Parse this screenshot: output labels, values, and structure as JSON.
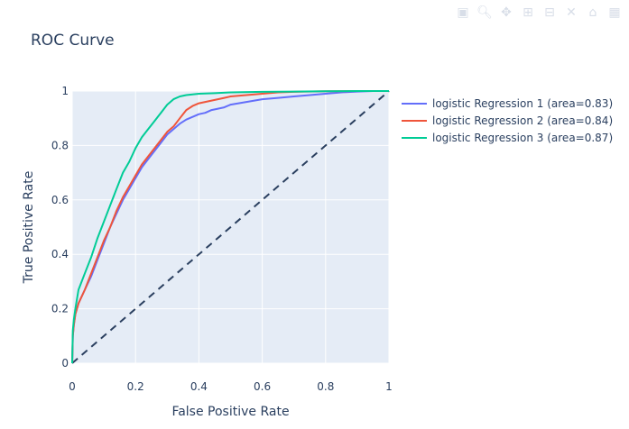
{
  "modebar": {
    "icons": [
      "camera-icon",
      "zoom-icon",
      "pan-icon",
      "zoom-in-icon",
      "zoom-out-icon",
      "autoscale-icon",
      "reset-axes-icon",
      "plotly-logo-icon"
    ]
  },
  "chart_data": {
    "type": "line",
    "title": "ROC Curve",
    "xlabel": "False Positive Rate",
    "ylabel": "True Positive Rate",
    "xlim": [
      0,
      1
    ],
    "ylim": [
      0,
      1
    ],
    "x_ticks": [
      "0",
      "0.2",
      "0.4",
      "0.6",
      "0.8",
      "1"
    ],
    "y_ticks": [
      "0",
      "0.2",
      "0.4",
      "0.6",
      "0.8",
      "1"
    ],
    "grid": true,
    "legend_position": "right",
    "plot_bgcolor": "#e5ecf6",
    "series": [
      {
        "name": "logistic Regression 1 (area=0.83)",
        "color": "#636efa",
        "x": [
          0,
          0.002,
          0.005,
          0.01,
          0.02,
          0.04,
          0.06,
          0.08,
          0.1,
          0.12,
          0.14,
          0.16,
          0.18,
          0.2,
          0.22,
          0.24,
          0.26,
          0.28,
          0.3,
          0.32,
          0.34,
          0.36,
          0.38,
          0.4,
          0.42,
          0.44,
          0.46,
          0.48,
          0.5,
          0.55,
          0.6,
          0.65,
          0.7,
          0.75,
          0.8,
          0.85,
          0.9,
          0.95,
          1.0
        ],
        "y": [
          0,
          0.1,
          0.14,
          0.18,
          0.22,
          0.27,
          0.32,
          0.38,
          0.44,
          0.5,
          0.55,
          0.6,
          0.64,
          0.68,
          0.72,
          0.75,
          0.78,
          0.81,
          0.84,
          0.86,
          0.88,
          0.895,
          0.905,
          0.915,
          0.92,
          0.93,
          0.935,
          0.94,
          0.95,
          0.96,
          0.97,
          0.975,
          0.98,
          0.985,
          0.99,
          0.995,
          0.998,
          1.0,
          1.0
        ]
      },
      {
        "name": "logistic Regression 2 (area=0.84)",
        "color": "#ef553b",
        "x": [
          0,
          0.002,
          0.005,
          0.01,
          0.02,
          0.04,
          0.06,
          0.08,
          0.1,
          0.12,
          0.14,
          0.16,
          0.18,
          0.2,
          0.22,
          0.24,
          0.26,
          0.28,
          0.3,
          0.32,
          0.34,
          0.36,
          0.38,
          0.4,
          0.42,
          0.44,
          0.46,
          0.48,
          0.5,
          0.55,
          0.6,
          0.65,
          0.7,
          0.8,
          0.9,
          1.0
        ],
        "y": [
          0,
          0.1,
          0.14,
          0.18,
          0.22,
          0.27,
          0.33,
          0.39,
          0.45,
          0.5,
          0.56,
          0.61,
          0.65,
          0.69,
          0.73,
          0.76,
          0.79,
          0.82,
          0.85,
          0.87,
          0.9,
          0.93,
          0.945,
          0.955,
          0.96,
          0.965,
          0.97,
          0.975,
          0.98,
          0.985,
          0.99,
          0.995,
          0.997,
          0.999,
          1.0,
          1.0
        ]
      },
      {
        "name": "logistic Regression 3 (area=0.87)",
        "color": "#00cc96",
        "x": [
          0,
          0.002,
          0.005,
          0.01,
          0.02,
          0.04,
          0.06,
          0.08,
          0.1,
          0.12,
          0.14,
          0.16,
          0.18,
          0.2,
          0.22,
          0.24,
          0.26,
          0.28,
          0.3,
          0.32,
          0.34,
          0.36,
          0.4,
          0.45,
          0.5,
          0.6,
          0.7,
          0.8,
          0.9,
          1.0
        ],
        "y": [
          0,
          0.12,
          0.16,
          0.2,
          0.27,
          0.33,
          0.39,
          0.46,
          0.52,
          0.58,
          0.64,
          0.7,
          0.74,
          0.79,
          0.83,
          0.86,
          0.89,
          0.92,
          0.95,
          0.97,
          0.98,
          0.985,
          0.99,
          0.992,
          0.995,
          0.997,
          0.998,
          0.999,
          1.0,
          1.0
        ]
      }
    ],
    "reference_line": {
      "style": "dashed",
      "color": "#2a3f5f",
      "x": [
        0,
        1
      ],
      "y": [
        0,
        1
      ]
    }
  }
}
